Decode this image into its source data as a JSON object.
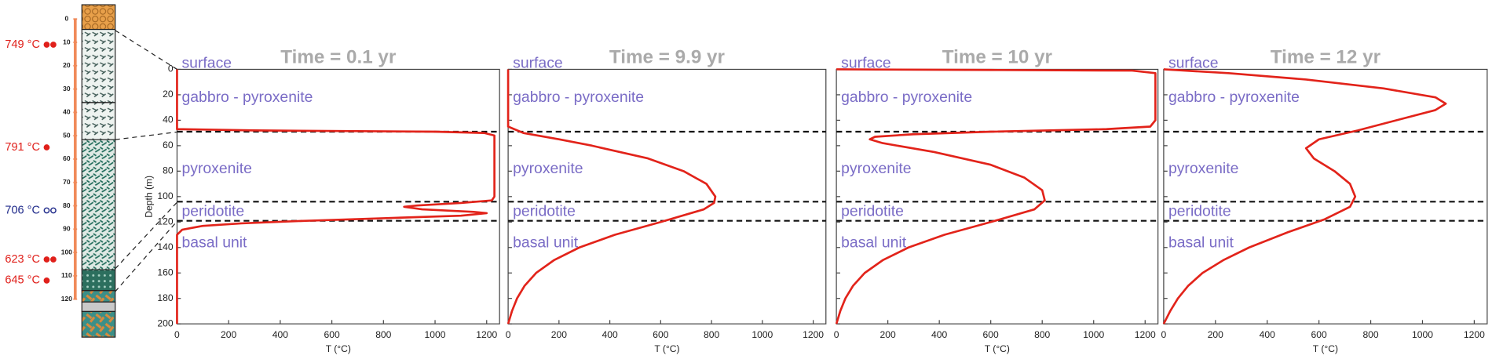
{
  "column": {
    "depth_ticks": [
      0,
      10,
      20,
      30,
      40,
      50,
      60,
      70,
      80,
      90,
      100,
      110,
      120
    ],
    "samples": [
      {
        "label": "749 °C",
        "depth": 11,
        "color": "#e0201b",
        "filled": true,
        "count": 2
      },
      {
        "label": "791 °C",
        "depth": 55,
        "color": "#e0201b",
        "filled": true,
        "count": 1
      },
      {
        "label": "706 °C",
        "depth": 82,
        "color": "#1f2a8a",
        "filled": false,
        "count": 2
      },
      {
        "label": "623 °C",
        "depth": 103,
        "color": "#e0201b",
        "filled": true,
        "count": 2
      },
      {
        "label": "645 °C",
        "depth": 112,
        "color": "#e0201b",
        "filled": true,
        "count": 1
      }
    ]
  },
  "chart_data": [
    {
      "type": "line",
      "title": "Time = 0.1 yr",
      "xlabel": "T (°C)",
      "ylabel": "Depth (m)",
      "show_ytick_labels": true,
      "xlim": [
        0,
        1250
      ],
      "ylim": [
        0,
        200
      ],
      "y_inverted": true,
      "xticks": [
        0,
        200,
        400,
        600,
        800,
        1000,
        1200
      ],
      "yticks": [
        0,
        20,
        40,
        60,
        80,
        100,
        120,
        140,
        160,
        180,
        200
      ],
      "boundaries": [
        49,
        104,
        119
      ],
      "layers": [
        "surface",
        "gabbro - pyroxenite",
        "pyroxenite",
        "peridotite",
        "basal unit"
      ],
      "series": [
        {
          "color": "#e2231a",
          "depth": [
            0,
            47,
            48,
            49,
            50,
            52,
            100,
            103,
            105,
            107,
            108,
            110,
            112,
            113,
            115,
            117,
            119,
            121,
            123,
            126,
            130,
            200
          ],
          "temperature": [
            0,
            0,
            300,
            1000,
            1190,
            1230,
            1230,
            1220,
            1100,
            930,
            880,
            950,
            1150,
            1200,
            1100,
            800,
            500,
            250,
            100,
            20,
            0,
            0
          ]
        }
      ]
    },
    {
      "type": "line",
      "title": "Time = 9.9 yr",
      "xlabel": "T (°C)",
      "show_ytick_labels": false,
      "xlim": [
        0,
        1250
      ],
      "ylim": [
        0,
        200
      ],
      "y_inverted": true,
      "xticks": [
        0,
        200,
        400,
        600,
        800,
        1000,
        1200
      ],
      "yticks": [
        0,
        20,
        40,
        60,
        80,
        100,
        120,
        140,
        160,
        180,
        200
      ],
      "boundaries": [
        49,
        104,
        119
      ],
      "layers": [
        "surface",
        "gabbro - pyroxenite",
        "pyroxenite",
        "peridotite",
        "basal unit"
      ],
      "series": [
        {
          "color": "#e2231a",
          "depth": [
            0,
            45,
            50,
            55,
            60,
            70,
            80,
            90,
            100,
            105,
            110,
            120,
            130,
            140,
            150,
            160,
            170,
            180,
            190,
            200
          ],
          "temperature": [
            0,
            0,
            60,
            200,
            330,
            550,
            690,
            780,
            815,
            810,
            770,
            600,
            420,
            280,
            180,
            110,
            65,
            35,
            15,
            0
          ]
        }
      ]
    },
    {
      "type": "line",
      "title": "Time = 10 yr",
      "xlabel": "T (°C)",
      "show_ytick_labels": false,
      "xlim": [
        0,
        1250
      ],
      "ylim": [
        0,
        200
      ],
      "y_inverted": true,
      "xticks": [
        0,
        200,
        400,
        600,
        800,
        1000,
        1200
      ],
      "yticks": [
        0,
        20,
        40,
        60,
        80,
        100,
        120,
        140,
        160,
        180,
        200
      ],
      "boundaries": [
        49,
        104,
        119
      ],
      "layers": [
        "surface",
        "gabbro - pyroxenite",
        "pyroxenite",
        "peridotite",
        "basal unit"
      ],
      "series": [
        {
          "color": "#e2231a",
          "depth": [
            0,
            0.5,
            1,
            3,
            40,
            45,
            47,
            49,
            51,
            53,
            55,
            58,
            65,
            75,
            85,
            95,
            103,
            110,
            120,
            130,
            140,
            150,
            160,
            170,
            180,
            190,
            200
          ],
          "temperature": [
            0,
            600,
            1150,
            1240,
            1240,
            1220,
            1050,
            600,
            300,
            150,
            130,
            180,
            380,
            600,
            730,
            800,
            810,
            770,
            600,
            420,
            280,
            180,
            110,
            65,
            35,
            15,
            0
          ]
        }
      ]
    },
    {
      "type": "line",
      "title": "Time = 12 yr",
      "xlabel": "T (°C)",
      "show_ytick_labels": false,
      "xlim": [
        0,
        1250
      ],
      "ylim": [
        0,
        200
      ],
      "y_inverted": true,
      "xticks": [
        0,
        200,
        400,
        600,
        800,
        1000,
        1200
      ],
      "yticks": [
        0,
        20,
        40,
        60,
        80,
        100,
        120,
        140,
        160,
        180,
        200
      ],
      "boundaries": [
        49,
        104,
        119
      ],
      "layers": [
        "surface",
        "gabbro - pyroxenite",
        "pyroxenite",
        "peridotite",
        "basal unit"
      ],
      "series": [
        {
          "color": "#e2231a",
          "depth": [
            0,
            3,
            8,
            15,
            22,
            27,
            32,
            40,
            48,
            55,
            62,
            70,
            80,
            90,
            100,
            108,
            118,
            128,
            140,
            150,
            160,
            170,
            180,
            190,
            200
          ],
          "temperature": [
            0,
            250,
            550,
            850,
            1050,
            1090,
            1050,
            900,
            750,
            600,
            550,
            580,
            660,
            720,
            740,
            720,
            620,
            480,
            330,
            230,
            150,
            95,
            55,
            25,
            0
          ]
        }
      ]
    }
  ]
}
